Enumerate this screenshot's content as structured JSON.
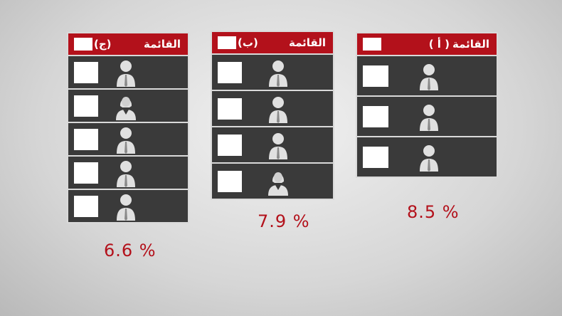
{
  "lists": [
    {
      "id": "c",
      "title": "القائمة",
      "letter": "(ج)",
      "percent": "6.6 %",
      "members": [
        "male",
        "female",
        "male",
        "male",
        "male"
      ]
    },
    {
      "id": "b",
      "title": "القائمة",
      "letter": "(ب)",
      "percent": "7.9 %",
      "members": [
        "male",
        "male",
        "male",
        "female"
      ]
    },
    {
      "id": "a",
      "title": "القائمة",
      "letter": "( أ )",
      "percent": "8.5 %",
      "members": [
        "male",
        "male",
        "male"
      ]
    }
  ],
  "colors": {
    "header": "#b3111b",
    "row": "#3a3a3a",
    "percent": "#b3111b"
  },
  "icons": {
    "male": "male-person-icon",
    "female": "female-person-icon"
  }
}
